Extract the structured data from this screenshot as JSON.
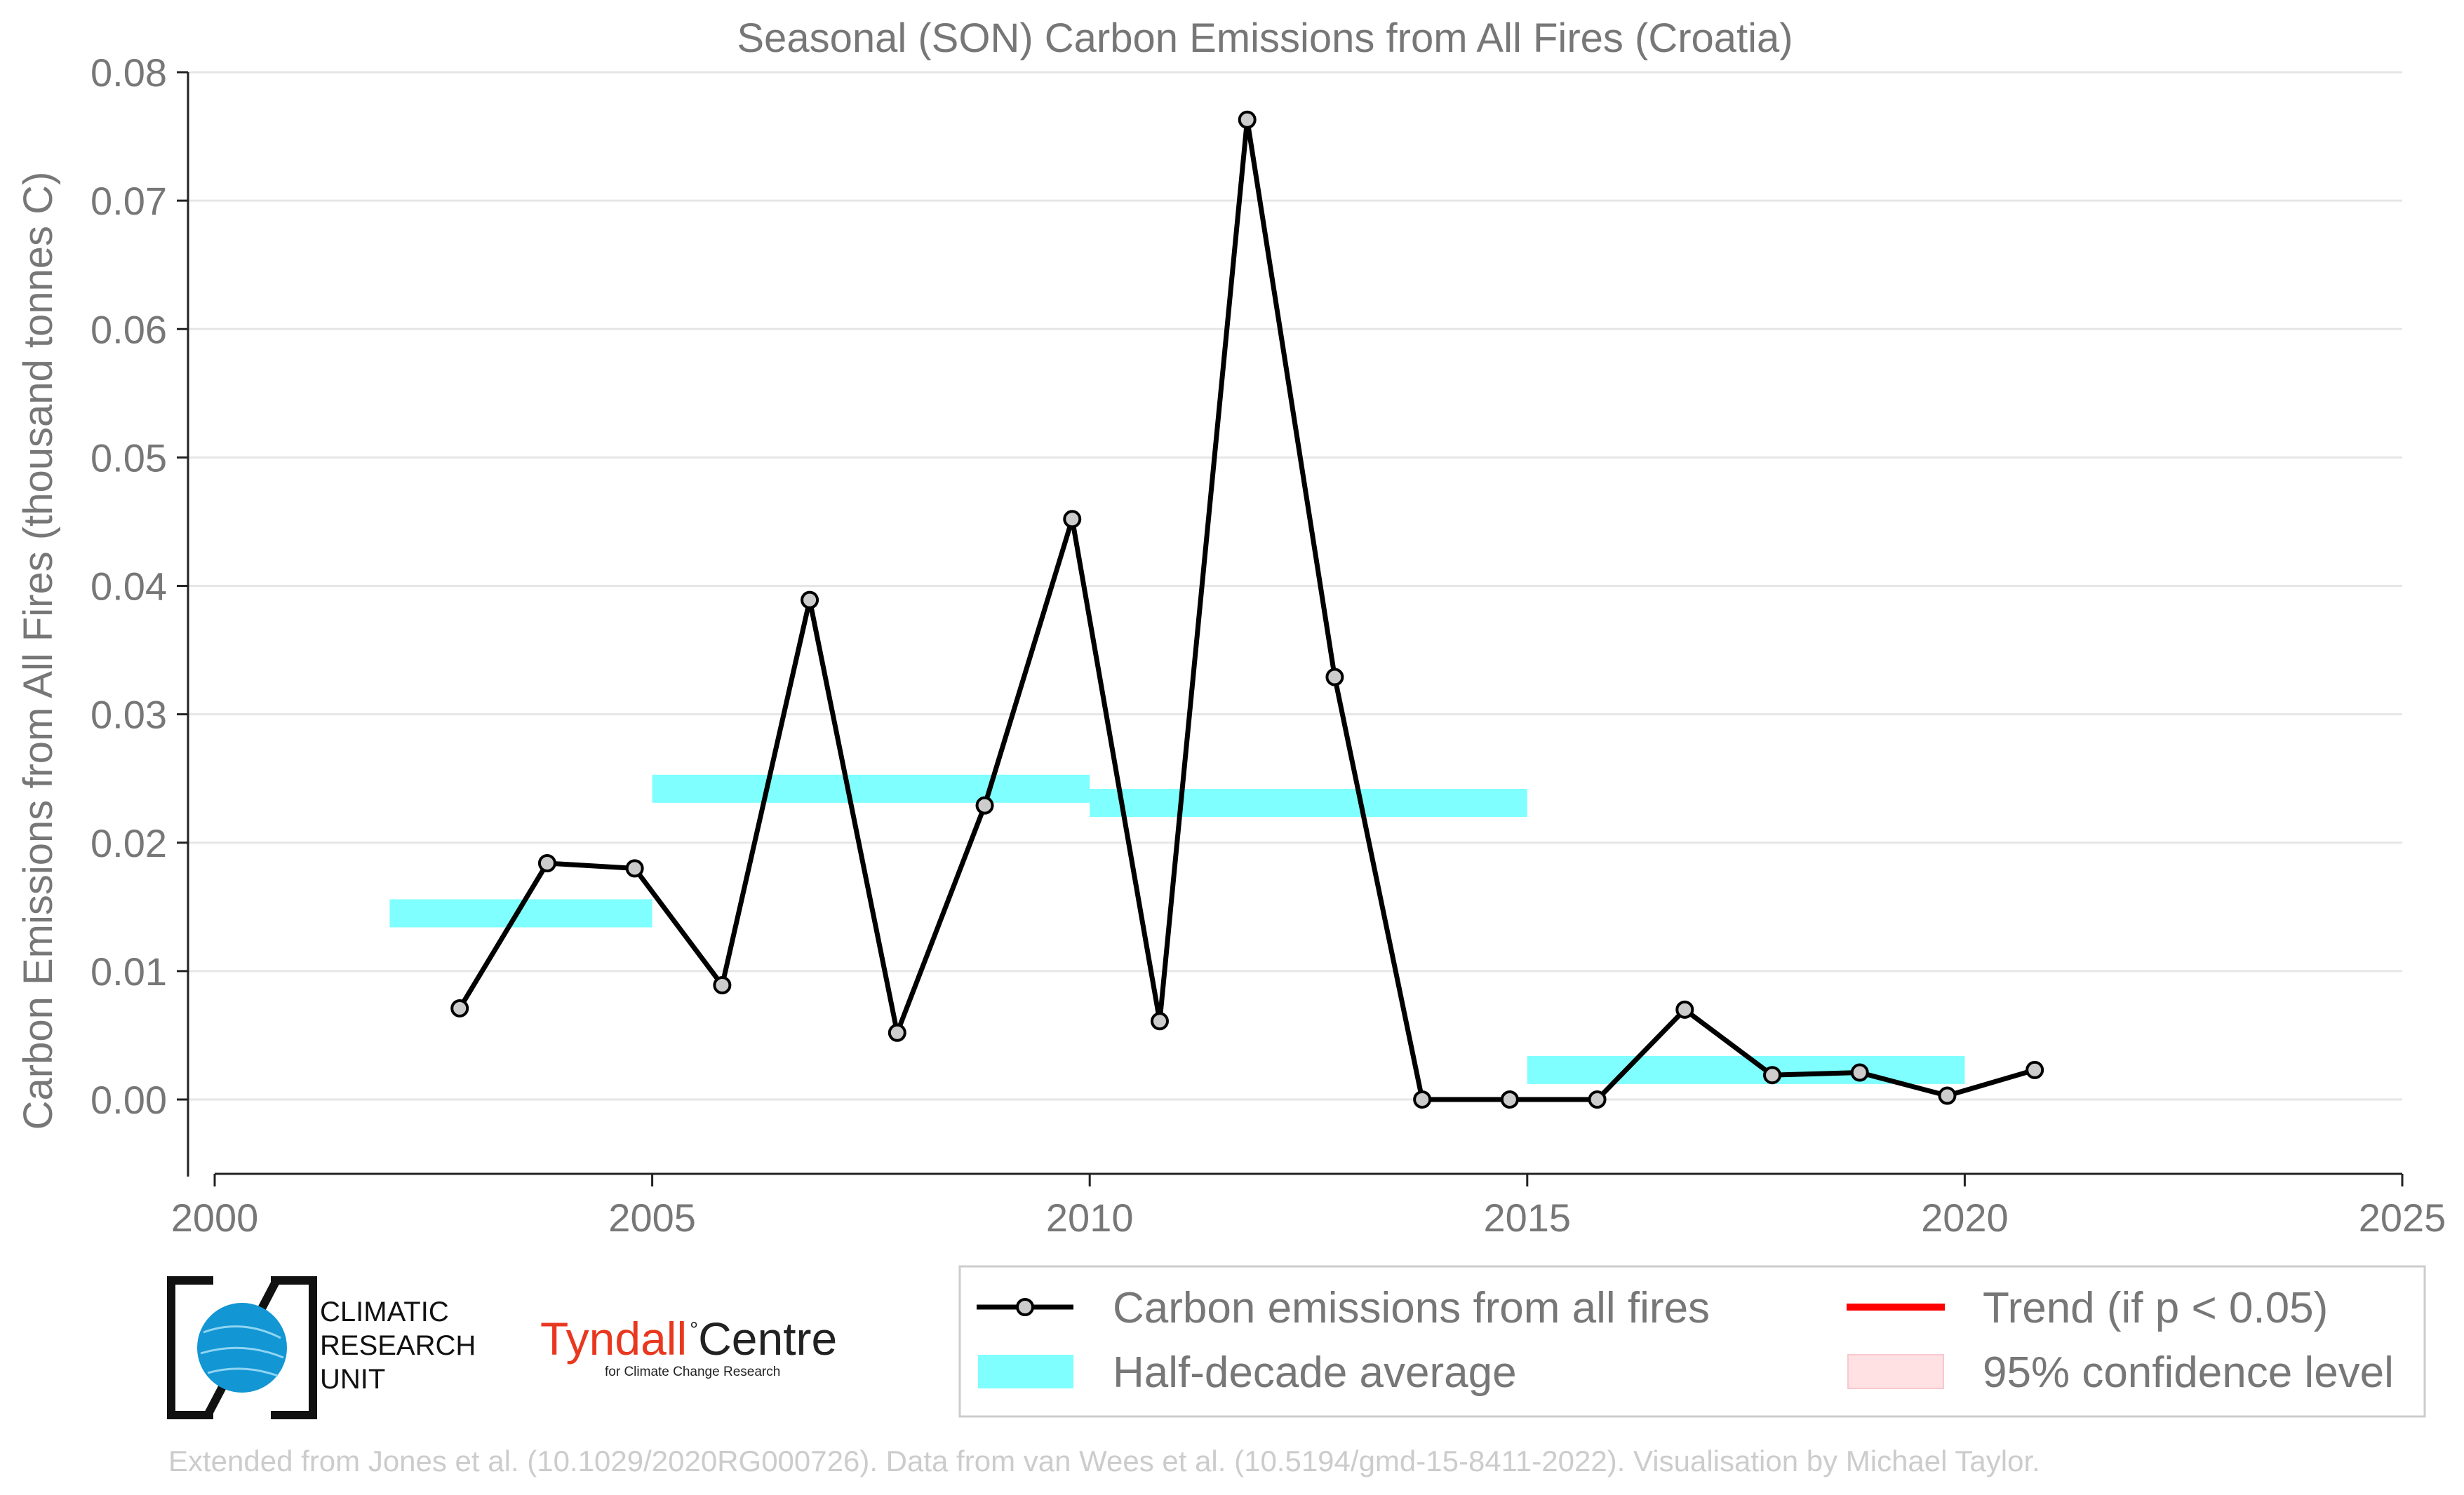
{
  "chart_data": {
    "type": "line",
    "title": "Seasonal (SON) Carbon Emissions from All Fires (Croatia)",
    "xlabel": "",
    "ylabel": "Carbon Emissions from All Fires (thousand tonnes C)",
    "xlim": [
      2000,
      2025
    ],
    "ylim": [
      -0.006,
      0.08
    ],
    "x_ticks": [
      2000,
      2005,
      2010,
      2015,
      2020,
      2025
    ],
    "y_ticks": [
      0.0,
      0.01,
      0.02,
      0.03,
      0.04,
      0.05,
      0.06,
      0.07,
      0.08
    ],
    "x_tick_labels": [
      "2000",
      "2005",
      "2010",
      "2015",
      "2020",
      "2025"
    ],
    "y_tick_labels": [
      "0.00",
      "0.01",
      "0.02",
      "0.03",
      "0.04",
      "0.05",
      "0.06",
      "0.07",
      "0.08"
    ],
    "grid": "horizontal",
    "legend_placement": "bottom-right, below plot",
    "series": [
      {
        "name": "Carbon emissions from all fires",
        "color": "#000000",
        "x": [
          2002.8,
          2003.8,
          2004.8,
          2005.8,
          2006.8,
          2007.8,
          2008.8,
          2009.8,
          2010.8,
          2011.8,
          2012.8,
          2013.8,
          2014.8,
          2015.8,
          2016.8,
          2017.8,
          2018.8,
          2019.8,
          2020.8
        ],
        "y": [
          0.0071,
          0.0184,
          0.018,
          0.0089,
          0.0389,
          0.0052,
          0.0229,
          0.0452,
          0.0061,
          0.0763,
          0.0329,
          0.0,
          0.0,
          0.0,
          0.007,
          0.0019,
          0.0021,
          0.0003,
          0.0023
        ]
      }
    ],
    "half_decade_average": {
      "name": "Half-decade average",
      "color": "#7fffff",
      "segments": [
        {
          "x0": 2002,
          "x1": 2005,
          "y": 0.0145
        },
        {
          "x0": 2005,
          "x1": 2010,
          "y": 0.0242
        },
        {
          "x0": 2010,
          "x1": 2015,
          "y": 0.0231
        },
        {
          "x0": 2015,
          "x1": 2020,
          "y": 0.0023
        }
      ]
    },
    "legend": [
      {
        "label": "Carbon emissions from all fires",
        "kind": "line-marker",
        "color": "#000000"
      },
      {
        "label": "Trend (if p < 0.05)",
        "kind": "line",
        "color": "#ff0000"
      },
      {
        "label": "Half-decade average",
        "kind": "patch",
        "color": "#7fffff"
      },
      {
        "label": "95% confidence level",
        "kind": "patch",
        "color": "#ffe0e3"
      }
    ]
  },
  "logos": {
    "cru_lines": [
      "CLIMATIC",
      "RESEARCH",
      "UNIT"
    ],
    "tyndall_name": "Tyndall",
    "tyndall_centre": "Centre",
    "tyndall_sub": "for Climate Change Research"
  },
  "credit": "Extended from Jones et al. (10.1029/2020RG000726). Data from van Wees et al. (10.5194/gmd-15-8411-2022). Visualisation by Michael Taylor."
}
